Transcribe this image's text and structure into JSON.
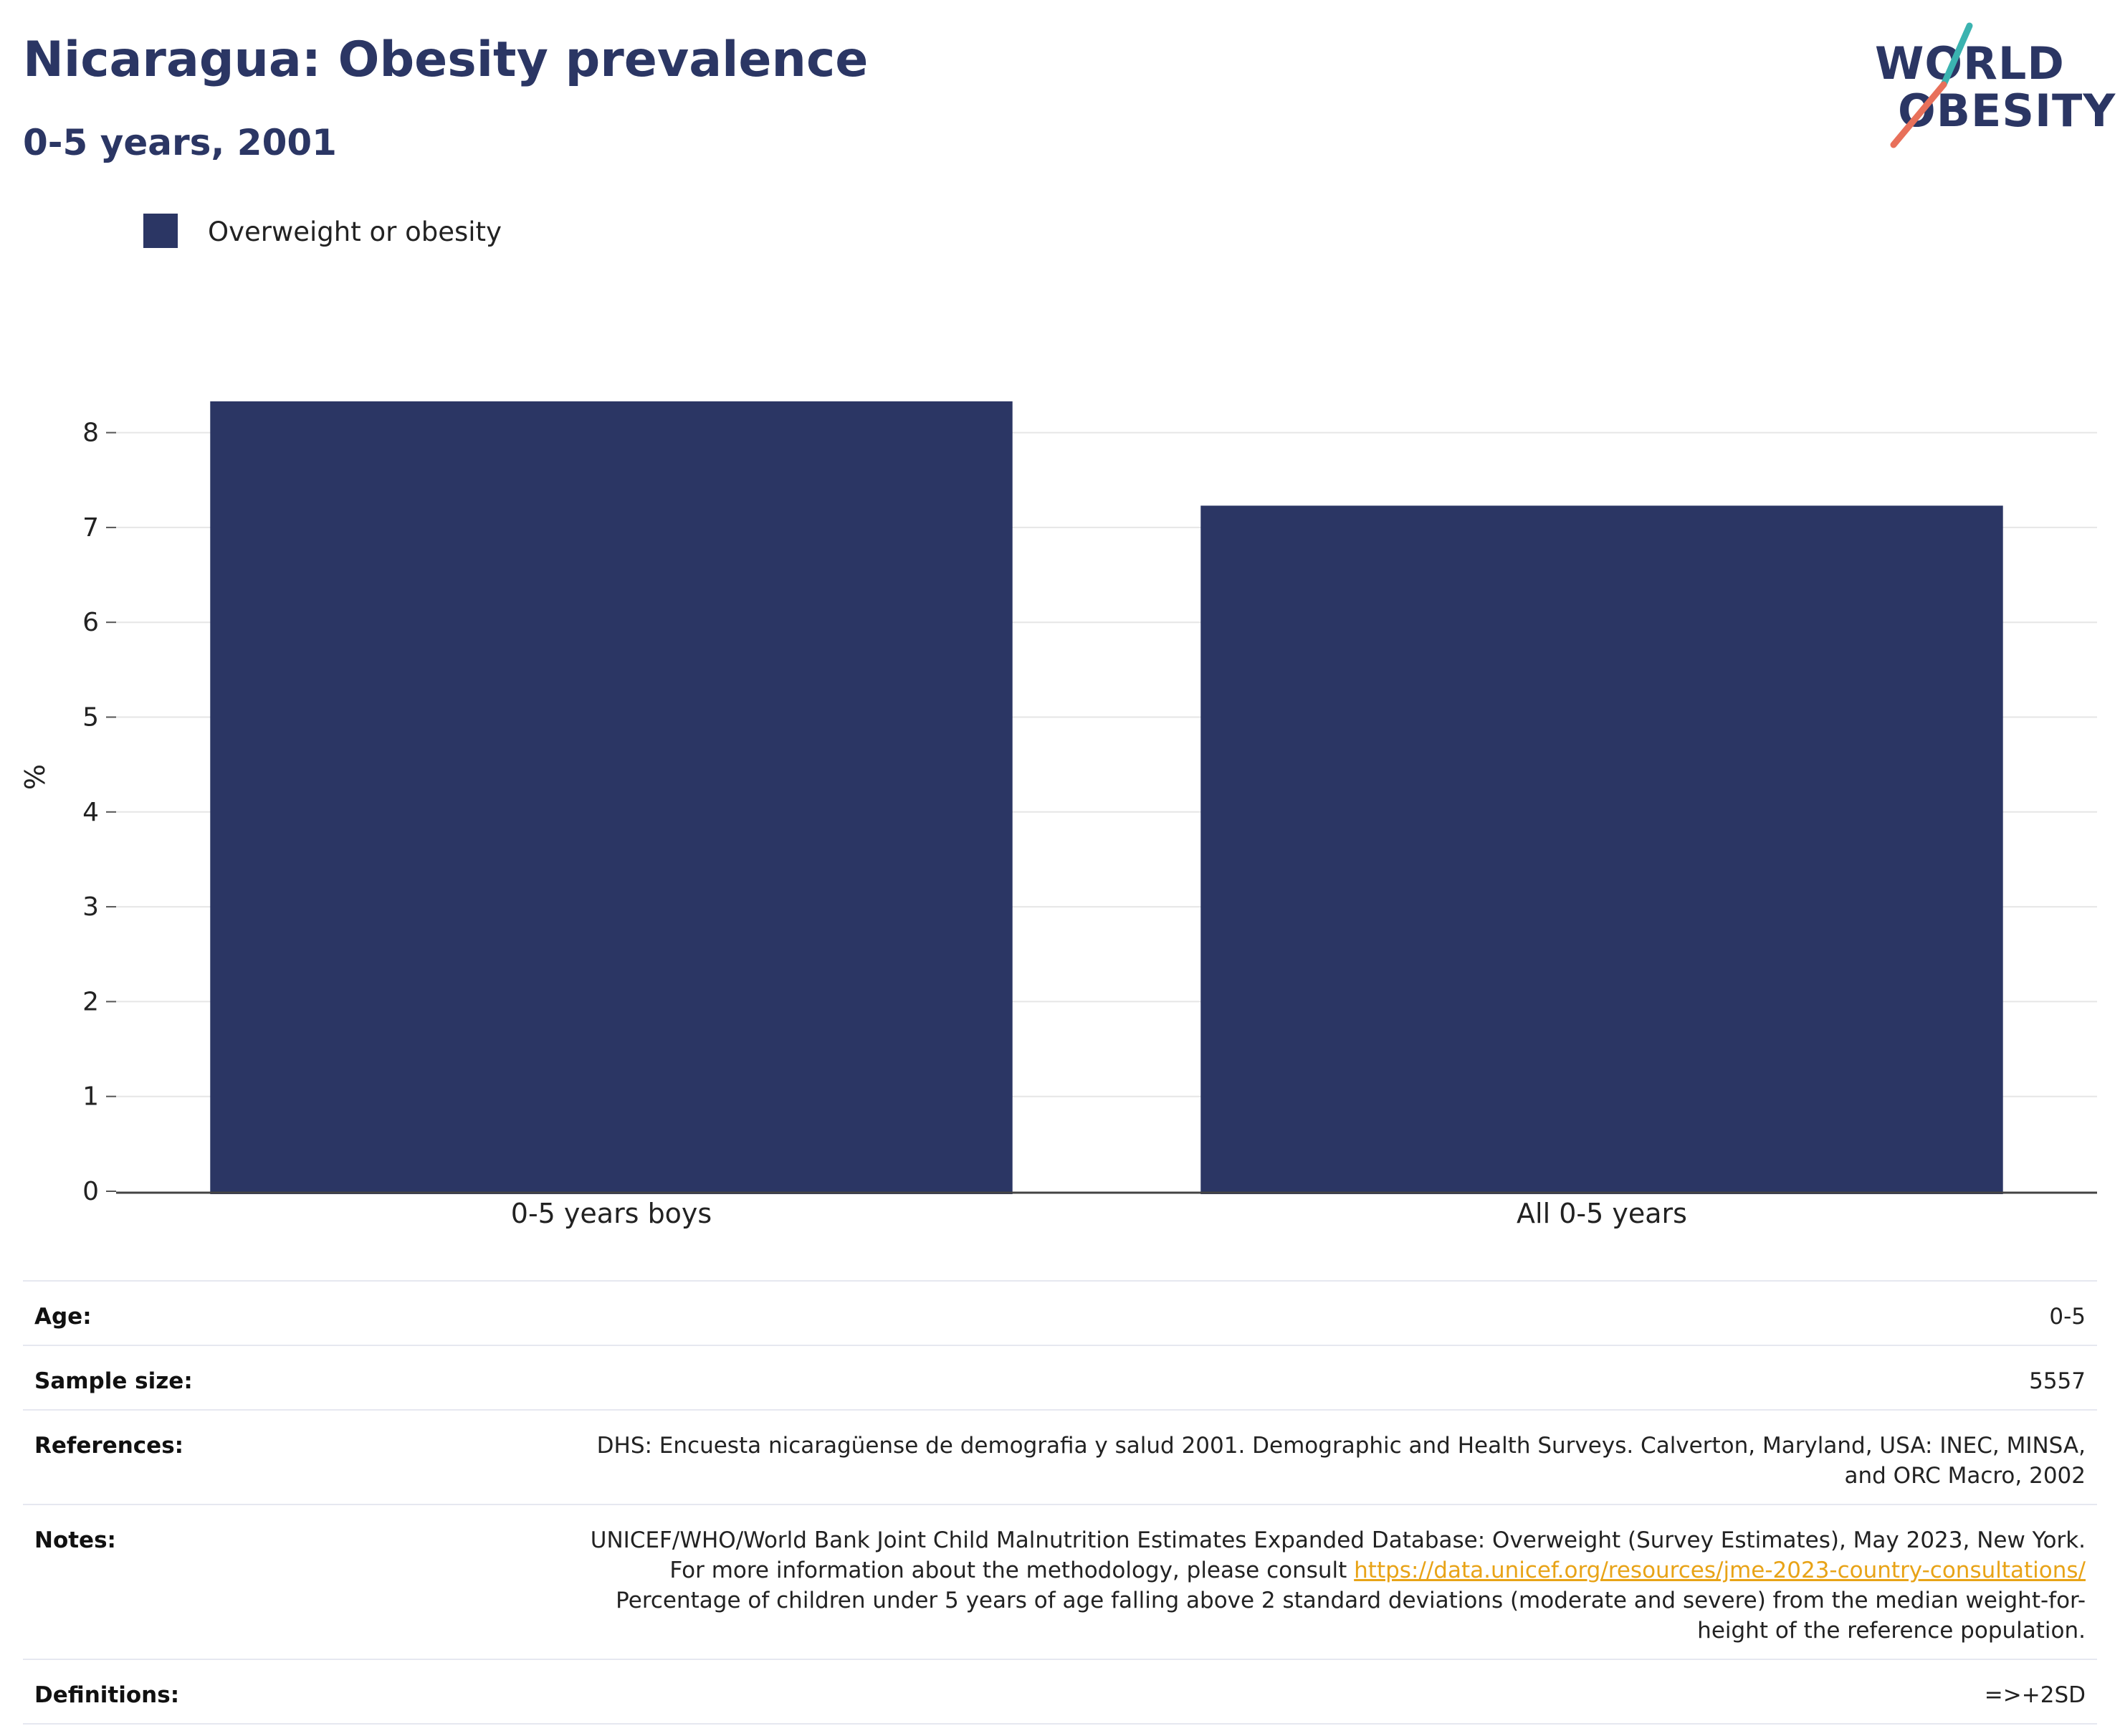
{
  "header": {
    "title": "Nicaragua: Obesity prevalence",
    "subtitle": "0-5 years, 2001"
  },
  "logo": {
    "line1": "WORLD",
    "line2": "OBESITY",
    "accent_teal": "#3bb3b0",
    "accent_coral": "#e8705a"
  },
  "legend": {
    "label": "Overweight or obesity",
    "color": "#2b3664"
  },
  "chart_data": {
    "type": "bar",
    "categories": [
      "0-5 years boys",
      "All 0-5 years"
    ],
    "series": [
      {
        "name": "Overweight or obesity",
        "values": [
          8.33,
          7.23
        ],
        "color": "#2b3664"
      }
    ],
    "ylabel": "%",
    "xlabel": "",
    "ylim": [
      0,
      8.5
    ],
    "yticks": [
      0,
      1,
      2,
      3,
      4,
      5,
      6,
      7,
      8
    ],
    "grid": true,
    "legend_position": "top-left"
  },
  "table": {
    "age": {
      "label": "Age:",
      "value": "0-5"
    },
    "sample_size": {
      "label": "Sample size:",
      "value": "5557"
    },
    "references": {
      "label": "References:",
      "value": "DHS: Encuesta nicaragüense de demografia y salud 2001. Demographic and Health Surveys. Calverton, Maryland, USA: INEC, MINSA, and ORC Macro, 2002"
    },
    "notes": {
      "label": "Notes:",
      "text_before": "UNICEF/WHO/World Bank Joint Child Malnutrition Estimates Expanded Database: Overweight (Survey Estimates), May 2023, New York. For more information about the methodology, please consult ",
      "link": "https://data.unicef.org/resources/jme-2023-country-consultations/",
      "text_after": " Percentage of children under 5 years of age falling above 2 standard deviations (moderate and severe) from the median weight-for-height of the reference population."
    },
    "definitions": {
      "label": "Definitions:",
      "value": "=>+2SD"
    }
  }
}
